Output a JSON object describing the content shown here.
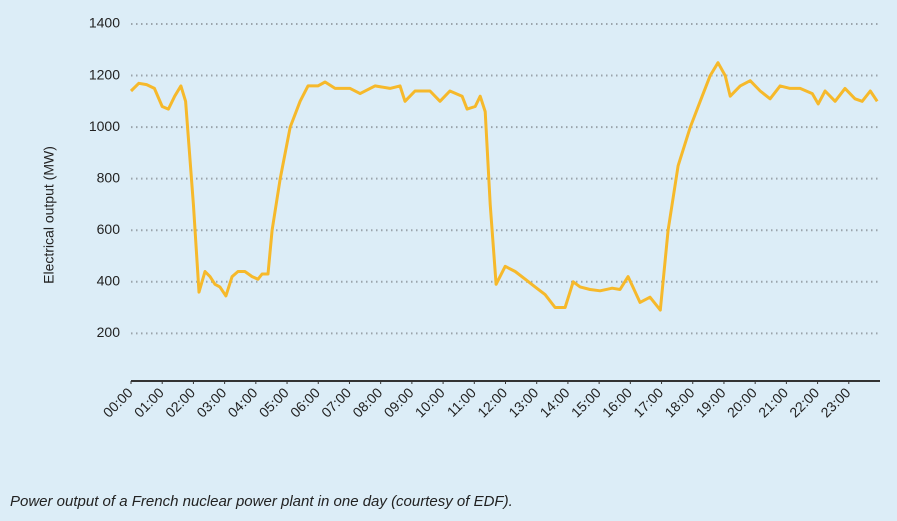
{
  "chart_data": {
    "type": "line",
    "y_label": "Electrical output (MW)",
    "caption": "Power output of a French nuclear power plant in one day (courtesy of EDF).",
    "xlim": [
      0,
      24
    ],
    "xticks": [
      {
        "value": 0,
        "label": "00:00"
      },
      {
        "value": 1,
        "label": "01:00"
      },
      {
        "value": 2,
        "label": "02:00"
      },
      {
        "value": 3,
        "label": "03:00"
      },
      {
        "value": 4,
        "label": "04:00"
      },
      {
        "value": 5,
        "label": "05:00"
      },
      {
        "value": 6,
        "label": "06:00"
      },
      {
        "value": 7,
        "label": "07:00"
      },
      {
        "value": 8,
        "label": "08:00"
      },
      {
        "value": 9,
        "label": "09:00"
      },
      {
        "value": 10,
        "label": "10:00"
      },
      {
        "value": 11,
        "label": "11:00"
      },
      {
        "value": 12,
        "label": "12:00"
      },
      {
        "value": 13,
        "label": "13:00"
      },
      {
        "value": 14,
        "label": "14:00"
      },
      {
        "value": 15,
        "label": "15:00"
      },
      {
        "value": 16,
        "label": "16:00"
      },
      {
        "value": 17,
        "label": "17:00"
      },
      {
        "value": 18,
        "label": "18:00"
      },
      {
        "value": 19,
        "label": "19:00"
      },
      {
        "value": 20,
        "label": "20:00"
      },
      {
        "value": 21,
        "label": "21:00"
      },
      {
        "value": 22,
        "label": "22:00"
      },
      {
        "value": 23,
        "label": "23:00"
      }
    ],
    "ylim": [
      15,
      1400
    ],
    "yticks": [
      200,
      400,
      600,
      800,
      1000,
      1200,
      1400
    ],
    "grid": true,
    "color": "#f6b92b",
    "x": [
      0,
      0.25,
      0.5,
      0.75,
      1.0,
      1.2,
      1.4,
      1.6,
      1.75,
      2.0,
      2.18,
      2.37,
      2.53,
      2.69,
      2.85,
      3.04,
      3.24,
      3.43,
      3.65,
      3.88,
      4.07,
      4.2,
      4.39,
      4.52,
      4.78,
      5.1,
      5.42,
      5.67,
      5.99,
      6.22,
      6.54,
      7.02,
      7.34,
      7.82,
      8.3,
      8.62,
      8.78,
      9.1,
      9.58,
      9.9,
      10.22,
      10.61,
      10.77,
      11.03,
      11.19,
      11.35,
      11.51,
      11.7,
      11.99,
      12.31,
      12.63,
      12.95,
      13.27,
      13.59,
      13.91,
      14.17,
      14.39,
      14.71,
      15.03,
      15.42,
      15.67,
      15.93,
      16.31,
      16.63,
      16.96,
      17.21,
      17.53,
      17.92,
      18.24,
      18.56,
      18.81,
      19.04,
      19.2,
      19.52,
      19.84,
      20.16,
      20.48,
      20.8,
      21.12,
      21.44,
      21.83,
      22.02,
      22.24,
      22.56,
      22.88,
      23.2,
      23.43,
      23.69,
      23.91
    ],
    "values": [
      1140,
      1170,
      1165,
      1150,
      1080,
      1070,
      1120,
      1160,
      1100,
      700,
      360,
      440,
      420,
      390,
      380,
      345,
      420,
      440,
      440,
      420,
      410,
      430,
      430,
      600,
      800,
      1000,
      1100,
      1160,
      1160,
      1175,
      1150,
      1150,
      1130,
      1160,
      1150,
      1160,
      1100,
      1140,
      1140,
      1100,
      1140,
      1120,
      1070,
      1080,
      1120,
      1060,
      700,
      390,
      460,
      440,
      410,
      380,
      350,
      300,
      300,
      400,
      380,
      370,
      365,
      375,
      370,
      420,
      320,
      340,
      290,
      600,
      850,
      1000,
      1100,
      1200,
      1250,
      1200,
      1120,
      1160,
      1180,
      1140,
      1110,
      1160,
      1150,
      1150,
      1130,
      1090,
      1140,
      1100,
      1150,
      1110,
      1100,
      1140,
      1100
    ]
  }
}
